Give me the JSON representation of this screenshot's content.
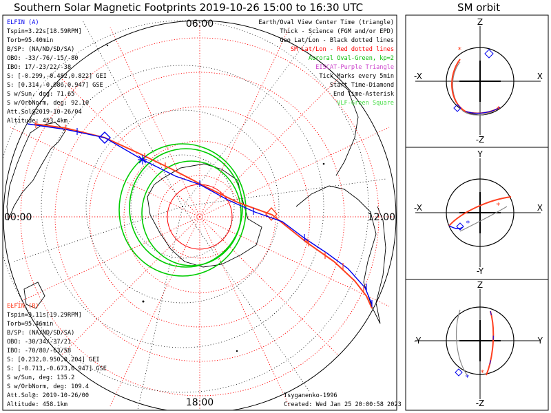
{
  "titles": {
    "main": "Southern Solar Magnetic Footprints 2019-10-26 15:00 to 16:30 UTC",
    "orbit": "SM orbit"
  },
  "clock_labels": {
    "top": "06:00",
    "bottom": "18:00",
    "left": "00:00",
    "right": "12:00"
  },
  "elfin_a": {
    "name": "ELFIN (A)",
    "color": "#0000ee",
    "lines": [
      "Tspin=3.22s[18.59RPM]",
      "Torb=95.40min",
      "B/SP: (NA/ND/SD/SA)",
      "OBO: -33/-76/-15/-80",
      "IBO: 17/-23/22/-38",
      "S: [-0.299,-0.482,0.822] GEI",
      "S: [0.314,-0.086,0.947] GSE",
      "S w/Sun, deg: 71.65",
      "S w/OrbNorm, deg: 92.10",
      "Att.Sol@2019-10-26/04",
      "Altitude: 453.4km"
    ]
  },
  "elfin_b": {
    "name": "ELFIN (B)",
    "color": "#ff4020",
    "lines": [
      "Tspin=3.11s[19.29RPM]",
      "Torb=95.46min",
      "B/SP: (NA/ND/SD/SA)",
      "OBO: -30/34/-37/21",
      "IBO: -70/80/-63/58",
      "S: [0.232,0.950,0.204] GEI",
      "S: [-0.713,-0.673,0.947] GSE",
      "S w/Sun, deg: 135.2",
      "S w/OrbNorm, deg: 109.4",
      "Att.Sol@: 2019-10-26/00",
      "Altitude: 458.1km"
    ]
  },
  "legend": [
    {
      "text": "Earth/Oval View Center Time (triangle)",
      "color": "#000000"
    },
    {
      "text": "Thick - Science (FGM and/or EPD)",
      "color": "#000000"
    },
    {
      "text": "Geo Lat/Lon - Black dotted lines",
      "color": "#000000"
    },
    {
      "text": "SM Lat/Lon - Red dotted lines",
      "color": "#ff0000"
    },
    {
      "text": "Auroral Oval-Green, kp=2",
      "color": "#00bb00"
    },
    {
      "text": "EISCAT-Purple Triangle",
      "color": "#cc44cc"
    },
    {
      "text": "Tick Marks every 5min",
      "color": "#000000"
    },
    {
      "text": "Start Time-Diamond",
      "color": "#000000"
    },
    {
      "text": "End Time-Asterisk",
      "color": "#000000"
    },
    {
      "text": "VLF-Green Square",
      "color": "#44dd44"
    }
  ],
  "credits": {
    "model": "Tsyganenko-1996",
    "created": "Created: Wed Jan 25 20:00:58 2023"
  },
  "orbit_panels": [
    {
      "top": "Z",
      "bottom": "-Z",
      "left": "-X",
      "right": "X"
    },
    {
      "top": "Y",
      "bottom": "-Y",
      "left": "-X",
      "right": "X"
    },
    {
      "top": "Z",
      "bottom": "-Z",
      "left": "-Y",
      "right": "Y"
    }
  ],
  "chart_data": {
    "type": "polar-footprint",
    "title": "Southern Solar Magnetic Footprints 2019-10-26 15:00 to 16:30 UTC",
    "series": [
      {
        "name": "ELFIN (A)",
        "color": "#0000ee"
      },
      {
        "name": "ELFIN (B)",
        "color": "#ff4020"
      }
    ],
    "colors": {
      "sm_grid": "#ff0000",
      "geo_grid": "#000000",
      "auroral_oval": "#00cc00"
    }
  }
}
